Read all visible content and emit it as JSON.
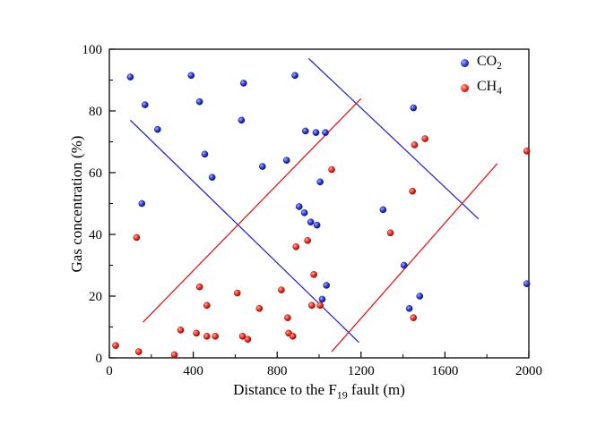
{
  "figure": {
    "background": "#ffffff",
    "axis_color": "#000000"
  },
  "chart_data": {
    "type": "scatter",
    "title": "",
    "xlabel": {
      "prefix": "Distance to the F",
      "sub": "19",
      "suffix": " fault (m)"
    },
    "ylabel": "Gas concentration (%)",
    "xlim": [
      0,
      2000
    ],
    "ylim": [
      0,
      100
    ],
    "x_ticks": [
      "0",
      "400",
      "800",
      "1200",
      "1600",
      "2000"
    ],
    "y_ticks": [
      "0",
      "20",
      "40",
      "60",
      "80",
      "100"
    ],
    "grid": false,
    "legend_position": "top-right-inside",
    "series": [
      {
        "name": "CO2",
        "label": {
          "text": "CO",
          "sub": "2"
        },
        "color": "#2230cf",
        "color_light": "#aab0ff",
        "color_dark": "#000d8a",
        "points": [
          [
            100,
            91
          ],
          [
            170,
            82
          ],
          [
            155,
            50
          ],
          [
            230,
            74
          ],
          [
            390,
            91.5
          ],
          [
            430,
            83
          ],
          [
            455,
            66
          ],
          [
            490,
            58.5
          ],
          [
            640,
            89
          ],
          [
            630,
            77
          ],
          [
            730,
            62
          ],
          [
            845,
            64
          ],
          [
            885,
            91.5
          ],
          [
            935,
            73.5
          ],
          [
            985,
            73
          ],
          [
            1030,
            73
          ],
          [
            905,
            49
          ],
          [
            930,
            47
          ],
          [
            960,
            44
          ],
          [
            990,
            43
          ],
          [
            1005,
            57
          ],
          [
            1035,
            23.5
          ],
          [
            1015,
            19
          ],
          [
            1305,
            48
          ],
          [
            1405,
            30
          ],
          [
            1430,
            16
          ],
          [
            1450,
            81
          ],
          [
            1480,
            20
          ],
          [
            1990,
            24
          ]
        ]
      },
      {
        "name": "CH4",
        "label": {
          "text": "CH",
          "sub": "4"
        },
        "color": "#ee2211",
        "color_light": "#ffb3a8",
        "color_dark": "#8c0000",
        "points": [
          [
            30,
            4
          ],
          [
            130,
            39
          ],
          [
            140,
            2
          ],
          [
            310,
            1
          ],
          [
            340,
            9
          ],
          [
            415,
            8
          ],
          [
            430,
            23
          ],
          [
            465,
            17
          ],
          [
            465,
            7
          ],
          [
            505,
            7
          ],
          [
            610,
            21
          ],
          [
            635,
            7
          ],
          [
            660,
            6
          ],
          [
            715,
            16
          ],
          [
            820,
            22
          ],
          [
            850,
            13
          ],
          [
            855,
            8
          ],
          [
            875,
            7
          ],
          [
            890,
            36
          ],
          [
            945,
            38
          ],
          [
            975,
            27
          ],
          [
            965,
            17
          ],
          [
            1005,
            17
          ],
          [
            1060,
            61
          ],
          [
            1340,
            40.5
          ],
          [
            1445,
            54
          ],
          [
            1455,
            69
          ],
          [
            1505,
            71
          ],
          [
            1450,
            13
          ],
          [
            1990,
            67
          ]
        ]
      }
    ],
    "trend_lines": [
      {
        "color": "#2a2ad0",
        "x1": 100,
        "y1": 77,
        "x2": 1190,
        "y2": 5
      },
      {
        "color": "#2a2ad0",
        "x1": 950,
        "y1": 97,
        "x2": 1760,
        "y2": 45
      },
      {
        "color": "#e31a1a",
        "x1": 160,
        "y1": 11.5,
        "x2": 1200,
        "y2": 84
      },
      {
        "color": "#e31a1a",
        "x1": 1060,
        "y1": 2,
        "x2": 1850,
        "y2": 63
      }
    ]
  }
}
